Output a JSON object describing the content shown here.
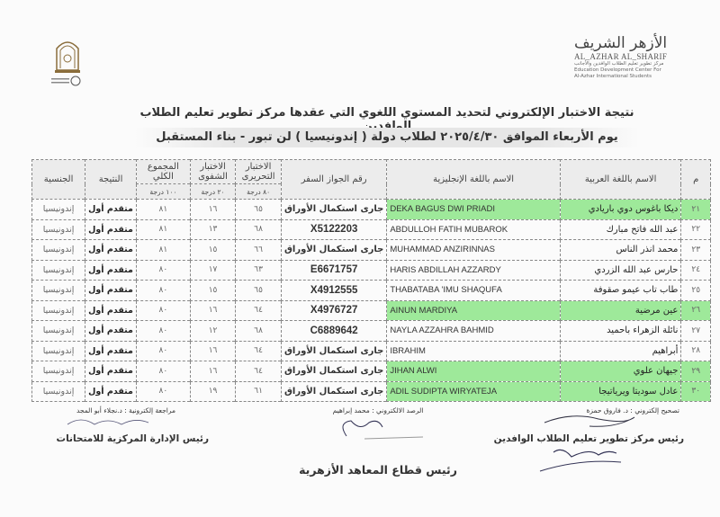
{
  "brand": {
    "arabic": "الأزهر الشريف",
    "latin": "AL_AZHAR AL_SHARIF",
    "center_ar": "مركز تطوير تعليم الطلاب الوافدين والأجانب",
    "center_en_1": "Education Development Center For",
    "center_en_2": "Al-Azhar International Students"
  },
  "title": {
    "line1": "نتيجة الاختبار الإلكتروني لتحديد المستوي اللغوي التي عقدها مركز تطوير تعليم الطلاب الوافدين",
    "line2": "يوم الأربعاء الموافق ٢٠٢٥/٤/٣٠ لطلاب دولة ( إندونيسيا ) لن تبور - بناء المستقبل"
  },
  "table": {
    "headers": {
      "no": "م",
      "name_ar": "الاسم باللغة العربية",
      "name_en": "الاسم باللغة الإنجليزية",
      "passport": "رقم الجواز السفر",
      "written": "الاختبار التحريرى",
      "oral": "الاختبار الشفوى",
      "total": "المجموع الكلي",
      "result": "النتيجة",
      "nationality": "الجنسية",
      "written_max": "٨٠ درجة",
      "oral_max": "٢٠ درجة",
      "total_max": "١٠٠ درجة"
    },
    "rows": [
      {
        "no": "٢١",
        "name_ar": "ديكا باغوس دوي باريادي",
        "name_en": "DEKA BAGUS DWI PRIADI",
        "passport": "جارى استكمال الأوراق",
        "written": "٦٥",
        "oral": "١٦",
        "total": "٨١",
        "result": "متقدم أول",
        "nationality": "إندونيسيا",
        "highlight": true
      },
      {
        "no": "٢٢",
        "name_ar": "عبد الله فاتح مبارك",
        "name_en": "ABDULLOH FATIH MUBAROK",
        "passport": "X5122203",
        "written": "٦٨",
        "oral": "١٣",
        "total": "٨١",
        "result": "متقدم أول",
        "nationality": "إندونيسيا",
        "highlight": false
      },
      {
        "no": "٢٣",
        "name_ar": "محمد انذر الناس",
        "name_en": "MUHAMMAD ANZIRINNAS",
        "passport": "جارى استكمال الأوراق",
        "written": "٦٦",
        "oral": "١٥",
        "total": "٨١",
        "result": "متقدم أول",
        "nationality": "إندونيسيا",
        "highlight": false
      },
      {
        "no": "٢٤",
        "name_ar": "حارس عبد الله الزردي",
        "name_en": "HARIS ABDILLAH AZZARDY",
        "passport": "E6671757",
        "written": "٦٣",
        "oral": "١٧",
        "total": "٨٠",
        "result": "متقدم أول",
        "nationality": "إندونيسيا",
        "highlight": false
      },
      {
        "no": "٢٥",
        "name_ar": "طاب تاب عيمو صقوفة",
        "name_en": "THABATABA 'IMU SHAQUFA",
        "passport": "X4912555",
        "written": "٦٥",
        "oral": "١٥",
        "total": "٨٠",
        "result": "متقدم أول",
        "nationality": "إندونيسيا",
        "highlight": false
      },
      {
        "no": "٢٦",
        "name_ar": "عين مرضية",
        "name_en": "AINUN MARDIYA",
        "passport": "X4976727",
        "written": "٦٤",
        "oral": "١٦",
        "total": "٨٠",
        "result": "متقدم أول",
        "nationality": "إندونيسيا",
        "highlight": true
      },
      {
        "no": "٢٧",
        "name_ar": "نائلة الزهراء باحميد",
        "name_en": "NAYLA AZZAHRA BAHMID",
        "passport": "C6889642",
        "written": "٦٨",
        "oral": "١٢",
        "total": "٨٠",
        "result": "متقدم أول",
        "nationality": "إندونيسيا",
        "highlight": false
      },
      {
        "no": "٢٨",
        "name_ar": "أبراهيم",
        "name_en": "IBRAHIM",
        "passport": "جارى استكمال الأوراق",
        "written": "٦٤",
        "oral": "١٦",
        "total": "٨٠",
        "result": "متقدم أول",
        "nationality": "إندونيسيا",
        "highlight": false
      },
      {
        "no": "٢٩",
        "name_ar": "جيهان علوي",
        "name_en": "JIHAN ALWI",
        "passport": "جارى استكمال الأوراق",
        "written": "٦٤",
        "oral": "١٦",
        "total": "٨٠",
        "result": "متقدم أول",
        "nationality": "إندونيسيا",
        "highlight": true
      },
      {
        "no": "٣٠",
        "name_ar": "عادل سوديتا ويرياتيجا",
        "name_en": "ADIL SUDIPTA WIRYATEJA",
        "passport": "جارى استكمال الأوراق",
        "written": "٦١",
        "oral": "١٩",
        "total": "٨٠",
        "result": "متقدم أول",
        "nationality": "إندونيسيا",
        "highlight": true
      }
    ]
  },
  "footer": {
    "correction": "تصحيح إلكتروني : د. فاروق حمزة",
    "monitoring": "الرصد الالكتروني :  محمد إبراهيم",
    "review": "مراجعة إلكترونية  : د.نجلاء أبو المجد",
    "center_head": "رئيس مركز تطوير تعليم الطلاب الوافدين",
    "exams_head": "رئيس الإدارة المركزية للامتحانات",
    "sector_head": "رئيس قطاع المعاهد الأزهرية"
  },
  "colors": {
    "highlight": "#9ee99a",
    "header_bg": "#ececec"
  }
}
